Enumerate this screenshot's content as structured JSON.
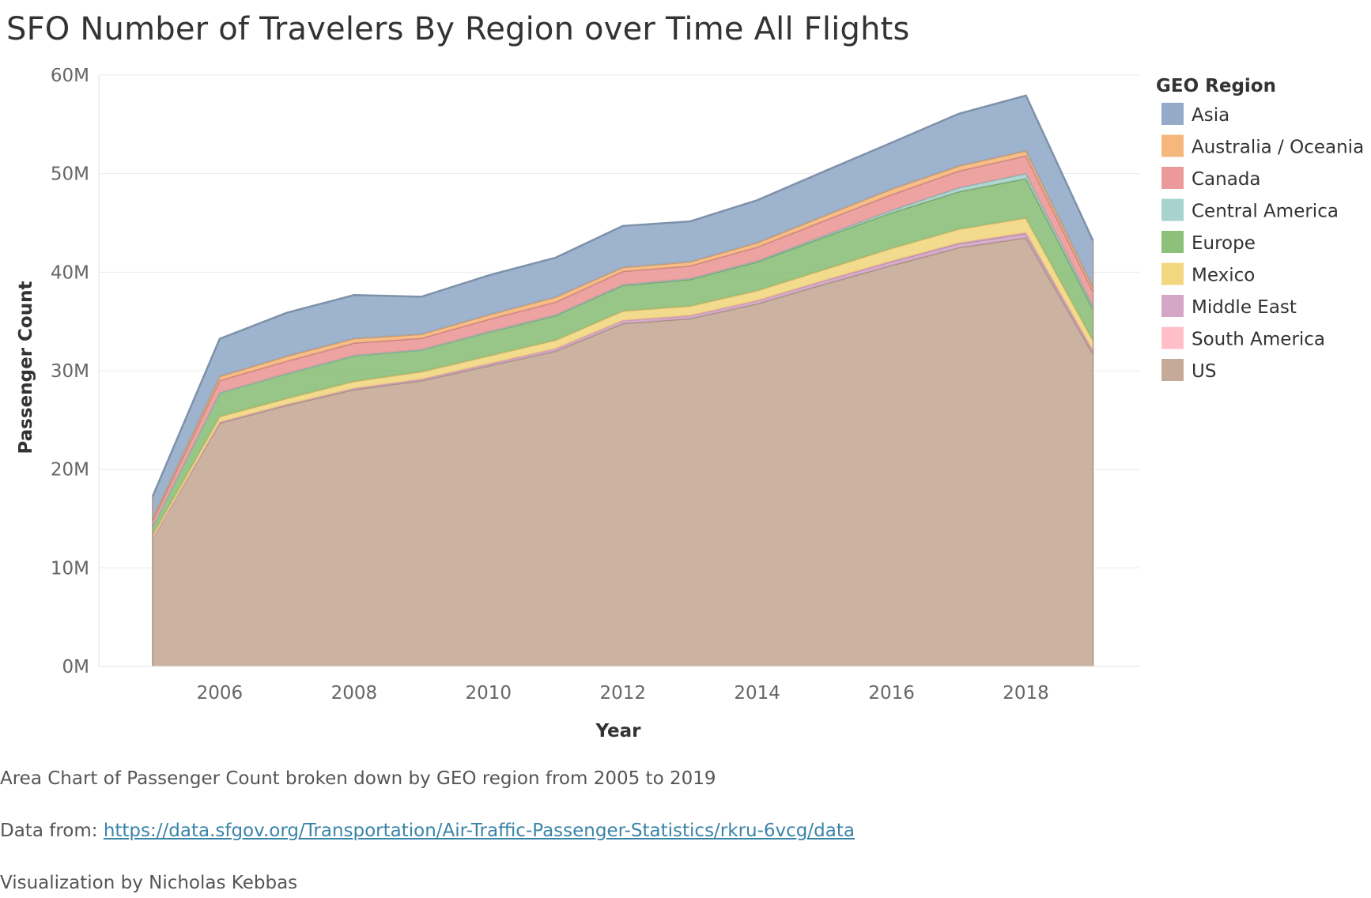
{
  "title": "SFO Number of Travelers By Region over Time All Flights",
  "chart_data": {
    "type": "area",
    "stacked": true,
    "title": "SFO Number of Travelers By Region over Time All Flights",
    "xlabel": "Year",
    "ylabel": "Passenger Count",
    "x": [
      2005,
      2006,
      2007,
      2008,
      2009,
      2010,
      2011,
      2012,
      2013,
      2014,
      2015,
      2016,
      2017,
      2018,
      2019
    ],
    "xlim": [
      2004.2,
      2019.7
    ],
    "x_ticks": [
      2006,
      2008,
      2010,
      2012,
      2014,
      2016,
      2018
    ],
    "ylim": [
      0,
      60000000
    ],
    "y_ticks": [
      0,
      10000000,
      20000000,
      30000000,
      40000000,
      50000000,
      60000000
    ],
    "y_tick_labels": [
      "0M",
      "10M",
      "20M",
      "30M",
      "40M",
      "50M",
      "60M"
    ],
    "grid": true,
    "legend": {
      "title": "GEO Region",
      "position": "right"
    },
    "series": [
      {
        "name": "US",
        "color": "#c5aa97",
        "values": [
          13000000,
          24700000,
          26500000,
          28100000,
          29000000,
          30500000,
          32000000,
          34800000,
          35300000,
          36800000,
          38800000,
          40700000,
          42500000,
          43500000,
          31700000
        ]
      },
      {
        "name": "Middle East",
        "color": "#d4a6c8",
        "values": [
          20000,
          100000,
          100000,
          120000,
          150000,
          200000,
          250000,
          300000,
          300000,
          320000,
          350000,
          380000,
          400000,
          420000,
          300000
        ]
      },
      {
        "name": "South America",
        "color": "#ffbfc8",
        "values": [
          5000,
          10000,
          10000,
          15000,
          15000,
          20000,
          20000,
          25000,
          25000,
          30000,
          40000,
          60000,
          80000,
          100000,
          80000
        ]
      },
      {
        "name": "Mexico",
        "color": "#f1d77f",
        "values": [
          350000,
          550000,
          600000,
          700000,
          750000,
          800000,
          850000,
          950000,
          950000,
          1000000,
          1100000,
          1300000,
          1400000,
          1500000,
          1000000
        ]
      },
      {
        "name": "Europe",
        "color": "#8cc07b",
        "values": [
          800000,
          2400000,
          2500000,
          2600000,
          2200000,
          2400000,
          2500000,
          2600000,
          2700000,
          2900000,
          3300000,
          3600000,
          3800000,
          4000000,
          3200000
        ]
      },
      {
        "name": "Central America",
        "color": "#a7d3cf",
        "values": [
          10000,
          30000,
          30000,
          40000,
          40000,
          50000,
          60000,
          70000,
          80000,
          100000,
          150000,
          250000,
          400000,
          500000,
          300000
        ]
      },
      {
        "name": "Canada",
        "color": "#ec9999",
        "values": [
          650000,
          1250000,
          1250000,
          1250000,
          1150000,
          1250000,
          1300000,
          1350000,
          1300000,
          1400000,
          1500000,
          1600000,
          1700000,
          1800000,
          1500000
        ]
      },
      {
        "name": "Australia / Oceania",
        "color": "#f5b77c",
        "values": [
          200000,
          400000,
          500000,
          450000,
          400000,
          450000,
          500000,
          400000,
          400000,
          450000,
          500000,
          550000,
          500000,
          500000,
          400000
        ]
      },
      {
        "name": "Asia",
        "color": "#93abc9",
        "values": [
          2200000,
          3800000,
          4400000,
          4400000,
          3800000,
          4000000,
          4000000,
          4200000,
          4100000,
          4300000,
          4500000,
          4700000,
          5300000,
          5600000,
          4700000
        ]
      }
    ],
    "legend_order": [
      "Asia",
      "Australia / Oceania",
      "Canada",
      "Central America",
      "Europe",
      "Mexico",
      "Middle East",
      "South America",
      "US"
    ]
  },
  "footer": {
    "caption": "Area Chart of Passenger Count  broken down by GEO region from 2005 to 2019",
    "source_prefix": "Data from: ",
    "source_link": "https://data.sfgov.org/Transportation/Air-Traffic-Passenger-Statistics/rkru-6vcg/data",
    "credit": "Visualization by Nicholas Kebbas"
  }
}
